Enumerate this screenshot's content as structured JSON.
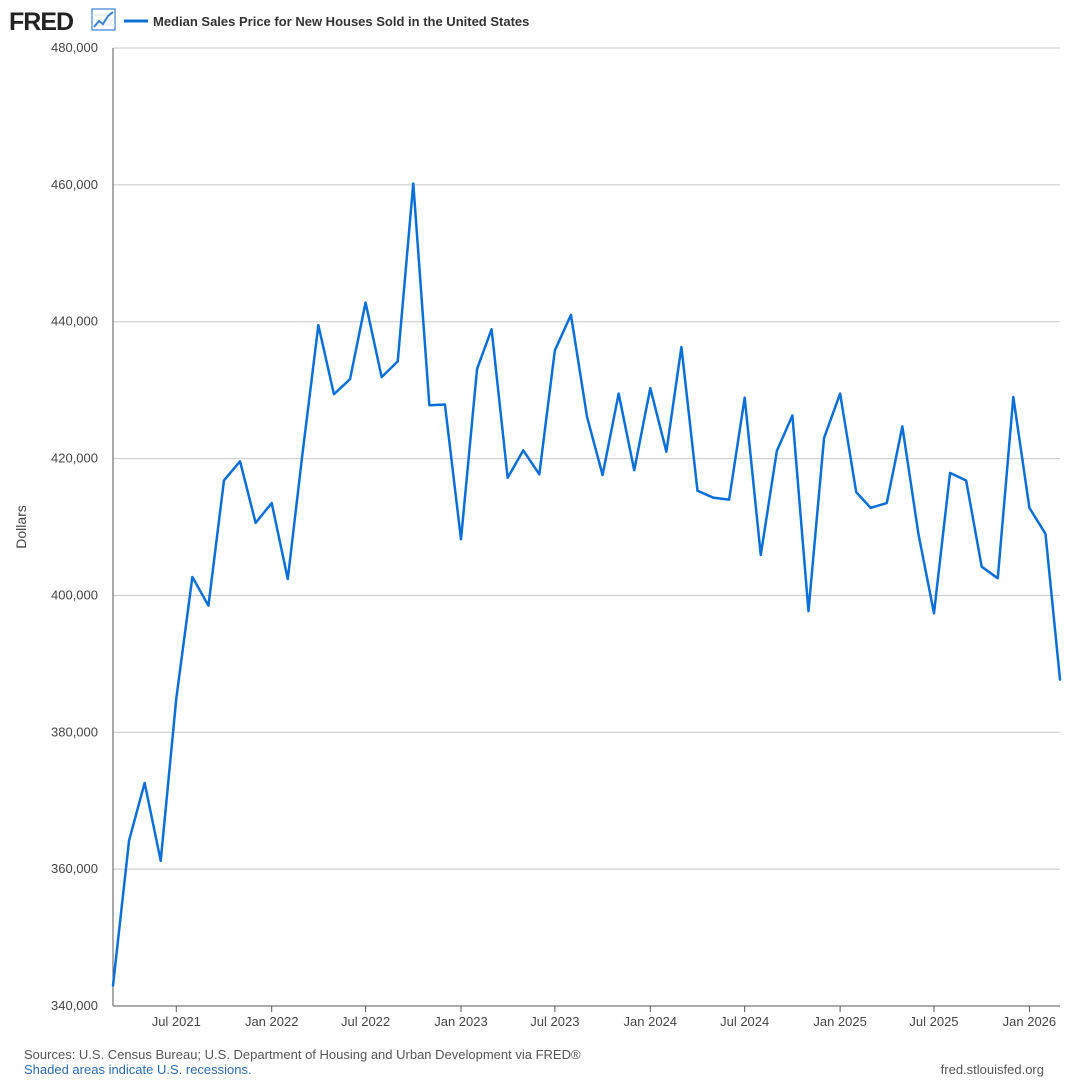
{
  "header": {
    "brand": "FRED",
    "brand_icon": "line-chart-icon"
  },
  "colors": {
    "series": "#0a6fd6",
    "brand_icon": "#3a7fd0"
  },
  "chart_data": {
    "type": "line",
    "ylabel": "Dollars",
    "ylim": [
      340000,
      480000
    ],
    "yticks": [
      {
        "value": 340000,
        "label": "340,000"
      },
      {
        "value": 360000,
        "label": "360,000"
      },
      {
        "value": 380000,
        "label": "380,000"
      },
      {
        "value": 400000,
        "label": "400,000"
      },
      {
        "value": 420000,
        "label": "420,000"
      },
      {
        "value": 440000,
        "label": "440,000"
      },
      {
        "value": 460000,
        "label": "460,000"
      },
      {
        "value": 480000,
        "label": "480,000"
      }
    ],
    "xlim": [
      "2021-03-01",
      "2026-03-01"
    ],
    "xticks": [
      {
        "date": "2021-07-01",
        "label": "Jul 2021"
      },
      {
        "date": "2022-01-01",
        "label": "Jan 2022"
      },
      {
        "date": "2022-07-01",
        "label": "Jul 2022"
      },
      {
        "date": "2023-01-01",
        "label": "Jan 2023"
      },
      {
        "date": "2023-07-01",
        "label": "Jul 2023"
      },
      {
        "date": "2024-01-01",
        "label": "Jan 2024"
      },
      {
        "date": "2024-07-01",
        "label": "Jul 2024"
      },
      {
        "date": "2025-01-01",
        "label": "Jan 2025"
      },
      {
        "date": "2025-07-01",
        "label": "Jul 2025"
      },
      {
        "date": "2026-01-01",
        "label": "Jan 2026"
      }
    ],
    "grid": true,
    "legend": "top-left",
    "series": [
      {
        "name": "Median Sales Price for New Houses Sold in the United States",
        "x": [
          "2021-03-01",
          "2021-04-01",
          "2021-05-01",
          "2021-06-01",
          "2021-07-01",
          "2021-08-01",
          "2021-09-01",
          "2021-10-01",
          "2021-11-01",
          "2021-12-01",
          "2022-01-01",
          "2022-02-01",
          "2022-03-01",
          "2022-04-01",
          "2022-05-01",
          "2022-06-01",
          "2022-07-01",
          "2022-08-01",
          "2022-09-01",
          "2022-10-01",
          "2022-11-01",
          "2022-12-01",
          "2023-01-01",
          "2023-02-01",
          "2023-03-01",
          "2023-04-01",
          "2023-05-01",
          "2023-06-01",
          "2023-07-01",
          "2023-08-01",
          "2023-09-01",
          "2023-10-01",
          "2023-11-01",
          "2023-12-01",
          "2024-01-01",
          "2024-02-01",
          "2024-03-01",
          "2024-04-01",
          "2024-05-01",
          "2024-06-01",
          "2024-07-01",
          "2024-08-01",
          "2024-09-01",
          "2024-10-01",
          "2024-11-01",
          "2024-12-01",
          "2025-01-01",
          "2025-02-01",
          "2025-03-01",
          "2025-04-01",
          "2025-05-01",
          "2025-06-01",
          "2025-07-01",
          "2025-08-01",
          "2025-09-01",
          "2025-10-01",
          "2025-11-01",
          "2025-12-01",
          "2026-01-01",
          "2026-02-01",
          "2026-03-01"
        ],
        "values": [
          343000,
          364200,
          372600,
          361200,
          384900,
          402700,
          398500,
          416800,
          419600,
          410600,
          413500,
          402400,
          420500,
          439500,
          429400,
          431600,
          442800,
          431900,
          434200,
          460200,
          427800,
          427900,
          408200,
          433100,
          438900,
          417200,
          421200,
          417700,
          435800,
          441000,
          426100,
          417600,
          429500,
          418300,
          430300,
          421000,
          436300,
          415300,
          414300,
          414000,
          428900,
          405900,
          421100,
          426300,
          397700,
          423000,
          429500,
          415100,
          412800,
          413500,
          424700,
          409000,
          397400,
          417900,
          416800,
          404200,
          402500,
          429000,
          412800,
          409000,
          387700
        ]
      }
    ]
  },
  "footer": {
    "sources": "Sources: U.S. Census Bureau; U.S. Department of Housing and Urban Development via FRED®",
    "recession_note": "Shaded areas indicate U.S. recessions.",
    "url": "fred.stlouisfed.org"
  }
}
